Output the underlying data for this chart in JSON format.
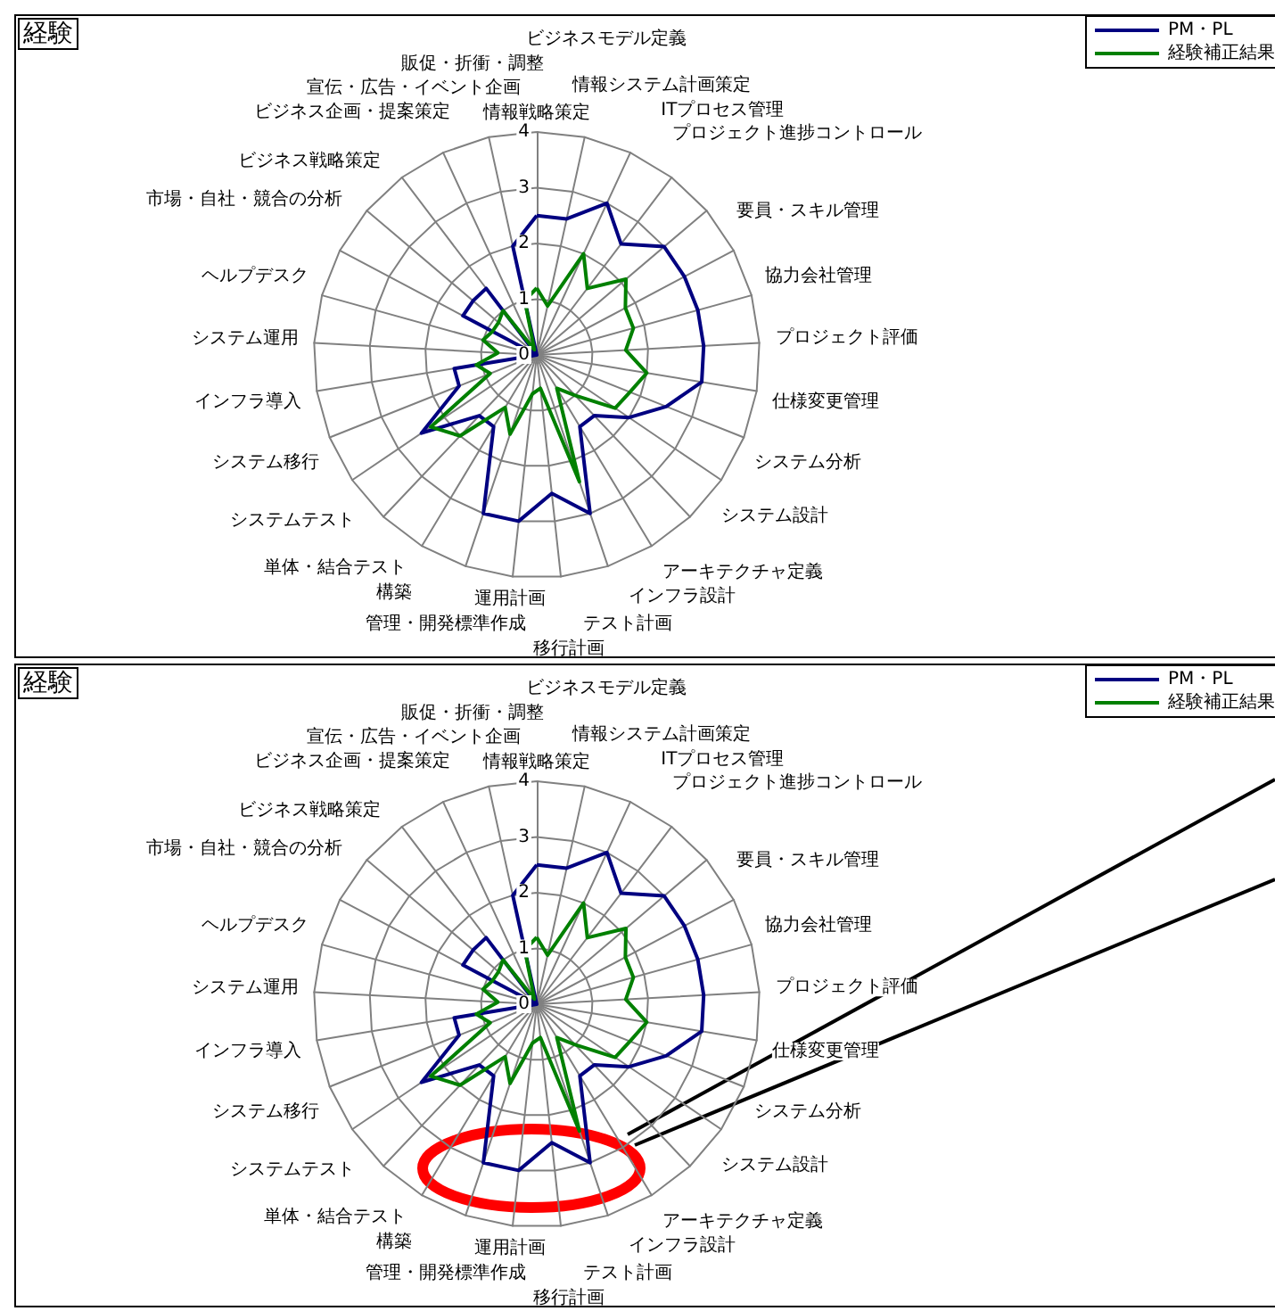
{
  "chart_data": [
    {
      "type": "radar",
      "title": "経験",
      "categories": [
        "情報戦略策定",
        "ビジネスモデル定義",
        "情報システム計画策定",
        "ITプロセス管理",
        "プロジェクト進捗コントロール",
        "要員・スキル管理",
        "協力会社管理",
        "プロジェクト評価",
        "仕様変更管理",
        "システム分析",
        "システム設計",
        "アーキテクチャ定義",
        "インフラ設計",
        "テスト計画",
        "移行計画",
        "運用計画",
        "管理・開発標準作成",
        "構築",
        "単体・結合テスト",
        "システムテスト",
        "システム移行",
        "インフラ導入",
        "システム運用",
        "ヘルプデスク",
        "市場・自社・競合の分析",
        "ビジネス戦略策定",
        "ビジネス企画・提案策定",
        "宣伝・広告・イベント企画",
        "販促・折衝・調整"
      ],
      "series": [
        {
          "name": "PM・PL",
          "color": "#000080",
          "values": [
            2.5,
            2.5,
            3,
            2.5,
            3,
            3,
            3,
            3,
            3,
            2.5,
            2,
            1.5,
            1.5,
            3,
            2.5,
            3,
            3,
            1.5,
            1.5,
            2.5,
            1.5,
            1.5,
            0,
            0,
            1.5,
            1.5,
            1.5,
            0,
            2
          ]
        },
        {
          "name": "経験補正結果",
          "color": "#008000",
          "values": [
            1.2,
            0.9,
            2.0,
            1.5,
            2.1,
            1.8,
            1.8,
            1.6,
            2.0,
            1.8,
            1.7,
            1.0,
            0.7,
            2.4,
            0.6,
            0.7,
            1.5,
            1.1,
            2.0,
            2.3,
            0.9,
            1.1,
            0.7,
            1.0,
            0.9,
            0.9,
            1.0,
            0.1,
            1.0
          ]
        }
      ],
      "ylim": [
        0,
        4
      ],
      "yticks": [
        0,
        1,
        2,
        3,
        4
      ],
      "grid": true,
      "legend": "top right",
      "marker": "none"
    },
    {
      "type": "radar",
      "title": "経験",
      "categories": [
        "情報戦略策定",
        "ビジネスモデル定義",
        "情報システム計画策定",
        "ITプロセス管理",
        "プロジェクト進捗コントロール",
        "要員・スキル管理",
        "協力会社管理",
        "プロジェクト評価",
        "仕様変更管理",
        "システム分析",
        "システム設計",
        "アーキテクチャ定義",
        "インフラ設計",
        "テスト計画",
        "移行計画",
        "運用計画",
        "管理・開発標準作成",
        "構築",
        "単体・結合テスト",
        "システムテスト",
        "システム移行",
        "インフラ導入",
        "システム運用",
        "ヘルプデスク",
        "市場・自社・競合の分析",
        "ビジネス戦略策定",
        "ビジネス企画・提案策定",
        "宣伝・広告・イベント企画",
        "販促・折衝・調整"
      ],
      "series": [
        {
          "name": "PM・PL",
          "color": "#000080",
          "values": [
            2.5,
            2.5,
            3,
            2.5,
            3,
            3,
            3,
            3,
            3,
            2.5,
            2,
            1.5,
            1.5,
            3,
            2.5,
            3,
            3,
            1.5,
            1.5,
            2.5,
            1.5,
            1.5,
            0,
            0,
            1.5,
            1.5,
            1.5,
            0,
            2
          ]
        },
        {
          "name": "経験補正結果",
          "color": "#008000",
          "values": [
            1.2,
            0.9,
            2.0,
            1.5,
            2.1,
            1.8,
            1.8,
            1.6,
            2.0,
            1.8,
            1.7,
            1.0,
            0.7,
            2.4,
            0.6,
            0.7,
            1.5,
            1.1,
            2.0,
            2.3,
            0.9,
            1.1,
            0.7,
            1.0,
            0.9,
            0.9,
            1.0,
            0.1,
            1.0
          ]
        }
      ],
      "ylim": [
        0,
        4
      ],
      "yticks": [
        0,
        1,
        2,
        3,
        4
      ],
      "grid": true,
      "legend": "top right",
      "marker": "none"
    }
  ]
}
